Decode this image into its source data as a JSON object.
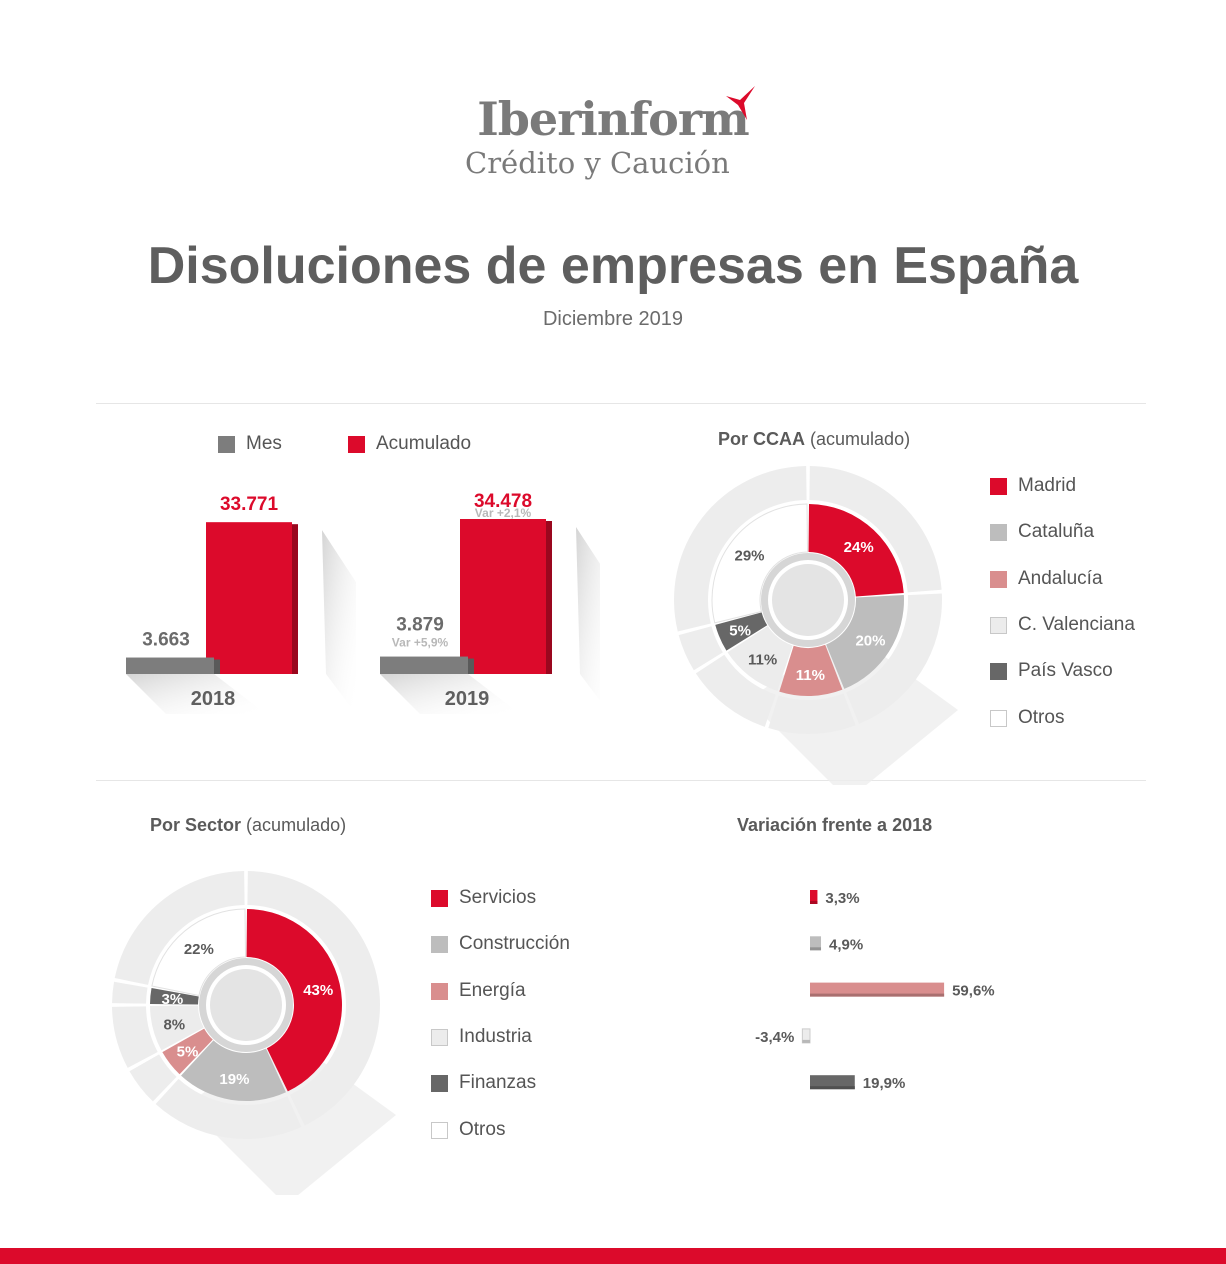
{
  "header": {
    "brand": "Iberinform",
    "tagline": "Crédito y Caución",
    "title": "Disoluciones de empresas en España",
    "subtitle": "Diciembre 2019"
  },
  "colors": {
    "red": "#dc0a2b",
    "dark_gray": "#676767",
    "mid_gray": "#7d7d7d",
    "light_gray": "#bdbdbd",
    "pink": "#d98e8e",
    "very_light": "#ececec",
    "white": "#ffffff"
  },
  "chart_data": [
    {
      "type": "bar",
      "categories": [
        "2018",
        "2019"
      ],
      "series": [
        {
          "name": "Mes",
          "values": [
            3663,
            3879
          ],
          "labels": [
            "3.663",
            "3.879"
          ],
          "color": "#7d7d7d"
        },
        {
          "name": "Acumulado",
          "values": [
            33771,
            34478
          ],
          "labels": [
            "33.771",
            "34.478"
          ],
          "color": "#dc0a2b"
        }
      ],
      "annotations": {
        "mes_2019": "Var +5,9%",
        "acumulado_2019": "Var +2,1%"
      }
    },
    {
      "type": "pie",
      "title_bold": "Por CCAA",
      "title_rest": "(acumulado)",
      "labels": [
        "Madrid",
        "Cataluña",
        "Andalucía",
        "C. Valenciana",
        "País Vasco",
        "Otros"
      ],
      "values": [
        24,
        20,
        11,
        11,
        5,
        29
      ],
      "value_labels": [
        "24%",
        "20%",
        "11%",
        "11%",
        "5%",
        "29%"
      ],
      "colors": [
        "#dc0a2b",
        "#bdbdbd",
        "#d98e8e",
        "#ececec",
        "#676767",
        "#ffffff"
      ]
    },
    {
      "type": "pie",
      "title_bold": "Por Sector",
      "title_rest": "(acumulado)",
      "labels": [
        "Servicios",
        "Construcción",
        "Energía",
        "Industria",
        "Finanzas",
        "Otros"
      ],
      "values": [
        43,
        19,
        5,
        8,
        3,
        22
      ],
      "value_labels": [
        "43%",
        "19%",
        "5%",
        "8%",
        "3%",
        "22%"
      ],
      "colors": [
        "#dc0a2b",
        "#bdbdbd",
        "#d98e8e",
        "#ececec",
        "#676767",
        "#ffffff"
      ]
    },
    {
      "type": "bar",
      "title": "Variación frente a 2018",
      "categories": [
        "Servicios",
        "Construcción",
        "Energía",
        "Industria",
        "Finanzas"
      ],
      "values": [
        3.3,
        4.9,
        59.6,
        -3.4,
        19.9
      ],
      "value_labels": [
        "3,3%",
        "4,9%",
        "59,6%",
        "-3,4%",
        "19,9%"
      ],
      "colors": [
        "#dc0a2b",
        "#bdbdbd",
        "#d98e8e",
        "#ececec",
        "#676767"
      ]
    }
  ]
}
